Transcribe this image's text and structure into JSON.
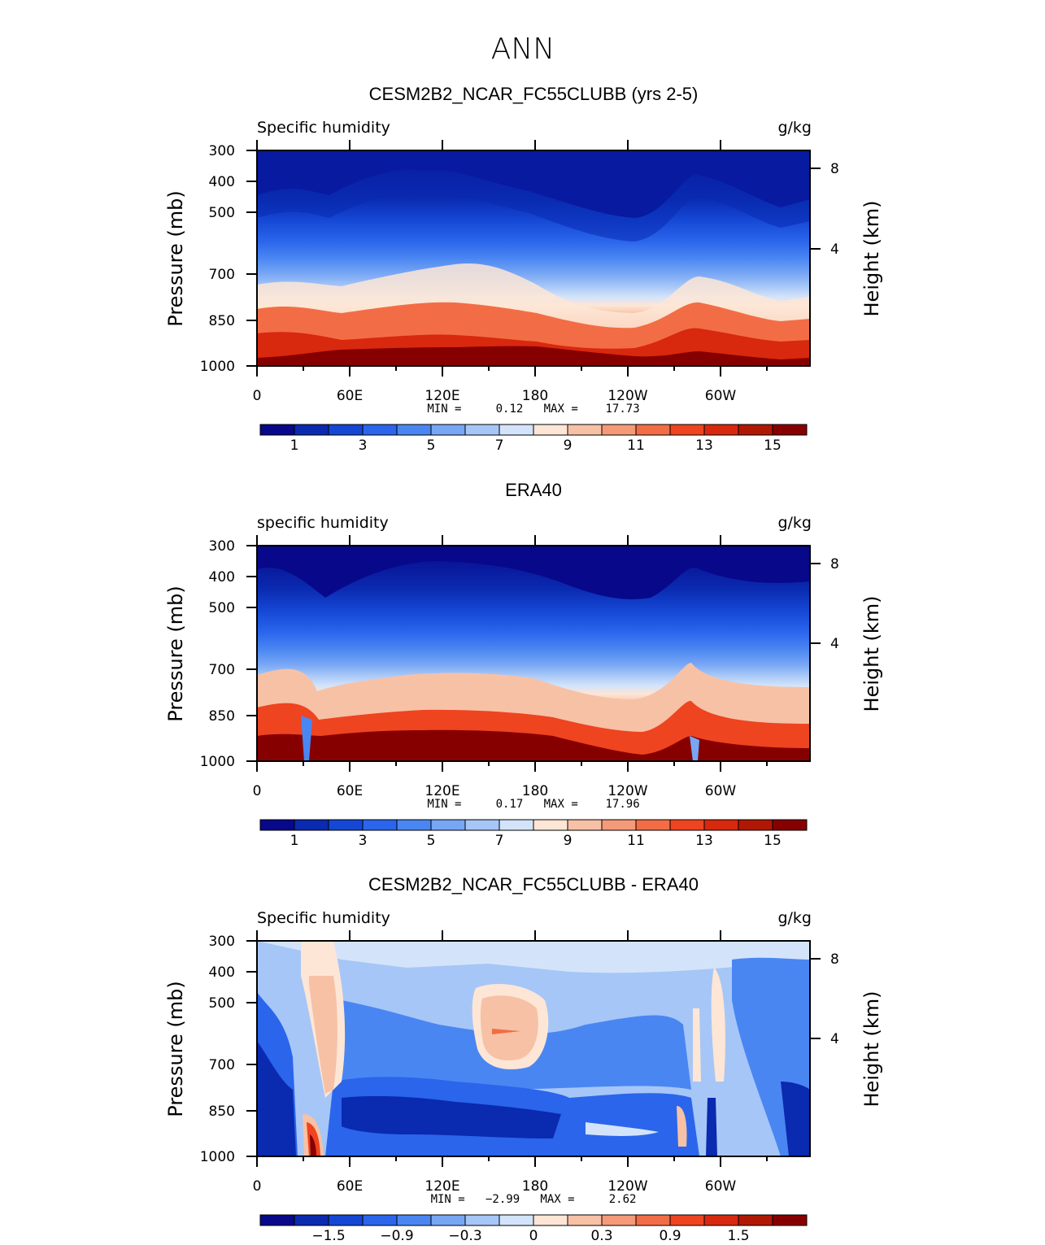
{
  "figure": {
    "title": "ANN"
  },
  "chart_data": [
    {
      "type": "heatmap",
      "title": "CESM2B2_NCAR_FC55CLUBB (yrs 2-5)",
      "subtitle_left": "Specific humidity",
      "subtitle_right": "g/kg",
      "ylabel": "Pressure (mb)",
      "ylabel_right": "Height (km)",
      "y_ticks": [
        "300",
        "400",
        "500",
        "700",
        "850",
        "1000"
      ],
      "y_right_ticks": [
        "8",
        "4"
      ],
      "x_ticks": [
        "0",
        "60E",
        "120E",
        "180",
        "120W",
        "60W"
      ],
      "min_max_text": "MIN =     0.12   MAX =    17.73",
      "colorbar_labels": [
        "1",
        "3",
        "5",
        "7",
        "9",
        "11",
        "13",
        "15"
      ],
      "levels": [
        0.12,
        17.73
      ]
    },
    {
      "type": "heatmap",
      "title": "ERA40",
      "subtitle_left": "specific humidity",
      "subtitle_right": "g/kg",
      "ylabel": "Pressure (mb)",
      "ylabel_right": "Height (km)",
      "y_ticks": [
        "300",
        "400",
        "500",
        "700",
        "850",
        "1000"
      ],
      "y_right_ticks": [
        "8",
        "4"
      ],
      "x_ticks": [
        "0",
        "60E",
        "120E",
        "180",
        "120W",
        "60W"
      ],
      "min_max_text": "MIN =     0.17   MAX =    17.96",
      "colorbar_labels": [
        "1",
        "3",
        "5",
        "7",
        "9",
        "11",
        "13",
        "15"
      ],
      "levels": [
        0.17,
        17.96
      ]
    },
    {
      "type": "heatmap",
      "title": "CESM2B2_NCAR_FC55CLUBB - ERA40",
      "subtitle_left": "Specific humidity",
      "subtitle_right": "g/kg",
      "ylabel": "Pressure (mb)",
      "ylabel_right": "Height (km)",
      "y_ticks": [
        "300",
        "400",
        "500",
        "700",
        "850",
        "1000"
      ],
      "y_right_ticks": [
        "8",
        "4"
      ],
      "x_ticks": [
        "0",
        "60E",
        "120E",
        "180",
        "120W",
        "60W"
      ],
      "min_max_text": "MIN =   −2.99   MAX =     2.62",
      "colorbar_labels": [
        "−1.5",
        "−0.9",
        "−0.3",
        "0",
        "0.3",
        "0.9",
        "1.5"
      ],
      "levels": [
        -2.99,
        2.62
      ]
    }
  ],
  "palette": [
    "#08088a",
    "#0a2ab0",
    "#1447d4",
    "#2a65ec",
    "#4a86f2",
    "#77a6f5",
    "#a6c6f7",
    "#d3e4fa",
    "#fde6d6",
    "#f7c1a6",
    "#f49a78",
    "#f26d45",
    "#ee4420",
    "#d8280e",
    "#b01804",
    "#870000"
  ]
}
